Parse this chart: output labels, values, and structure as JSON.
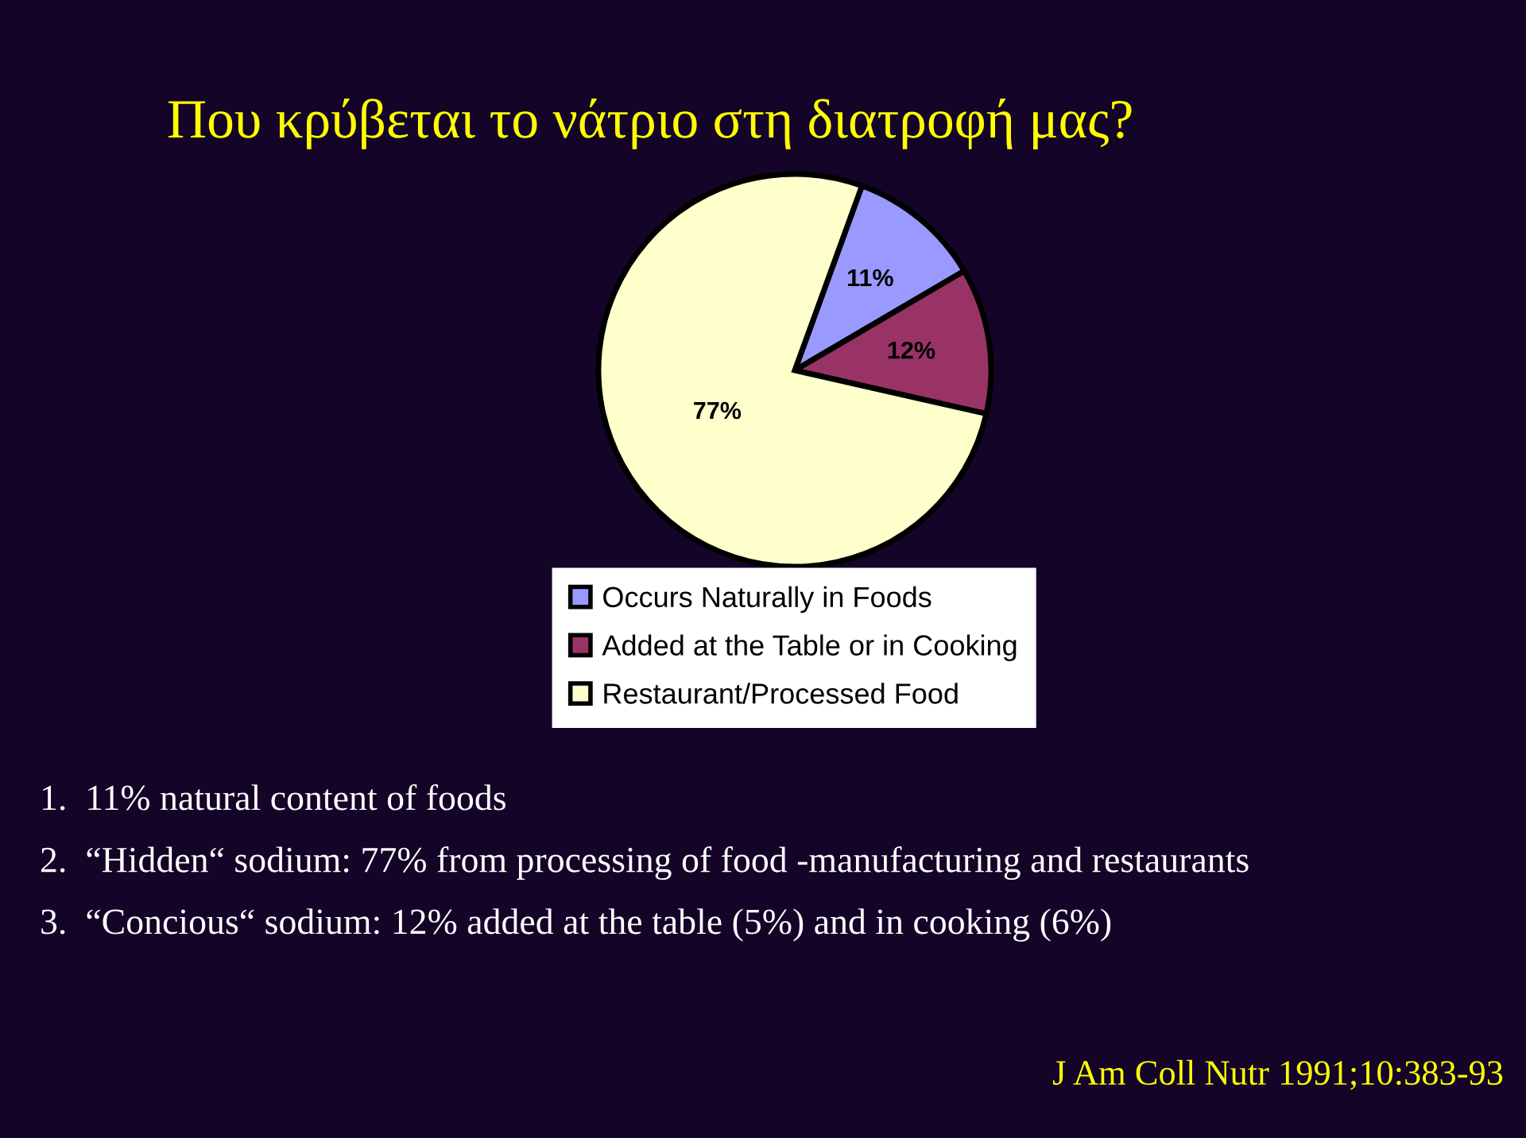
{
  "chart_data": {
    "type": "pie",
    "title": "Που κρύβεται το νάτριο στη διατροφή μας?",
    "categories": [
      "Occurs Naturally in Foods",
      "Added at the Table or in Cooking",
      "Restaurant/Processed Food"
    ],
    "values": [
      11,
      12,
      77
    ],
    "colors": [
      "#9999ff",
      "#993366",
      "#ffffcc"
    ],
    "value_labels": [
      "11%",
      "12%",
      "77%"
    ],
    "legend": "bottom",
    "annotations": [
      "1.  11% natural content of foods",
      "2.  “Hidden“ sodium: 77% from processing of food -manufacturing and restaurants",
      "3.  “Concious“ sodium: 12% added at the table (5%) and in cooking (6%)",
      "J Am Coll Nutr 1991;10:383-93"
    ]
  }
}
